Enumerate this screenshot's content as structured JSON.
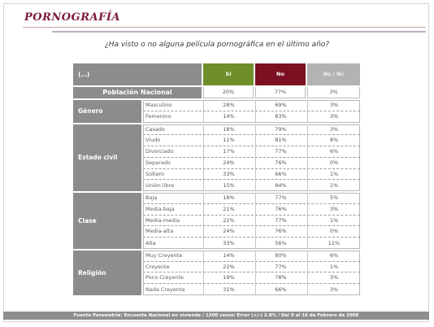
{
  "page": {
    "title": "PORNOGRAFÍA",
    "question": "¿Ha visto o no alguna película pornográfica en el último año?",
    "footer": "Fuente Parametría: Encuesta Nacional en vivienda / 1200 casos/ Error (+/-) 2.8% / Del 9 al 16 de Febrero de 2008"
  },
  "table": {
    "corner": "(…)",
    "headers": [
      "Sí",
      "No",
      "Ns / Nc"
    ],
    "header_colors": [
      "#6f8f2b",
      "#7a1021",
      "#b3b3b3"
    ],
    "national": {
      "label": "Población Nacional",
      "values": [
        "20%",
        "77%",
        "3%"
      ]
    },
    "groups": [
      {
        "name": "Género",
        "rows": [
          {
            "label": "Masculino",
            "values": [
              "28%",
              "69%",
              "3%"
            ]
          },
          {
            "label": "Femenino",
            "values": [
              "14%",
              "83%",
              "3%"
            ]
          }
        ]
      },
      {
        "name": "Estado civil",
        "rows": [
          {
            "label": "Casado",
            "values": [
              "18%",
              "79%",
              "3%"
            ]
          },
          {
            "label": "Viudo",
            "values": [
              "11%",
              "81%",
              "8%"
            ]
          },
          {
            "label": "Divorciado",
            "values": [
              "17%",
              "77%",
              "6%"
            ]
          },
          {
            "label": "Separado",
            "values": [
              "24%",
              "76%",
              "0%"
            ]
          },
          {
            "label": "Soltero",
            "values": [
              "33%",
              "66%",
              "1%"
            ]
          },
          {
            "label": "Unión libre",
            "values": [
              "15%",
              "84%",
              "1%"
            ]
          }
        ]
      },
      {
        "name": "Clase",
        "rows": [
          {
            "label": "Baja",
            "values": [
              "18%",
              "77%",
              "5%"
            ]
          },
          {
            "label": "Media-baja",
            "values": [
              "21%",
              "76%",
              "3%"
            ]
          },
          {
            "label": "Media-media",
            "values": [
              "22%",
              "77%",
              "1%"
            ]
          },
          {
            "label": "Media-alta",
            "values": [
              "24%",
              "76%",
              "0%"
            ]
          },
          {
            "label": "Alta",
            "values": [
              "33%",
              "56%",
              "11%"
            ]
          }
        ]
      },
      {
        "name": "Religión",
        "rows": [
          {
            "label": "Muy Creyente",
            "values": [
              "14%",
              "80%",
              "6%"
            ]
          },
          {
            "label": "Creyente",
            "values": [
              "22%",
              "77%",
              "1%"
            ]
          },
          {
            "label": "Poco Creyente",
            "values": [
              "19%",
              "78%",
              "3%"
            ]
          },
          {
            "label": "Nada Creyente",
            "values": [
              "31%",
              "66%",
              "3%"
            ]
          }
        ]
      }
    ]
  }
}
